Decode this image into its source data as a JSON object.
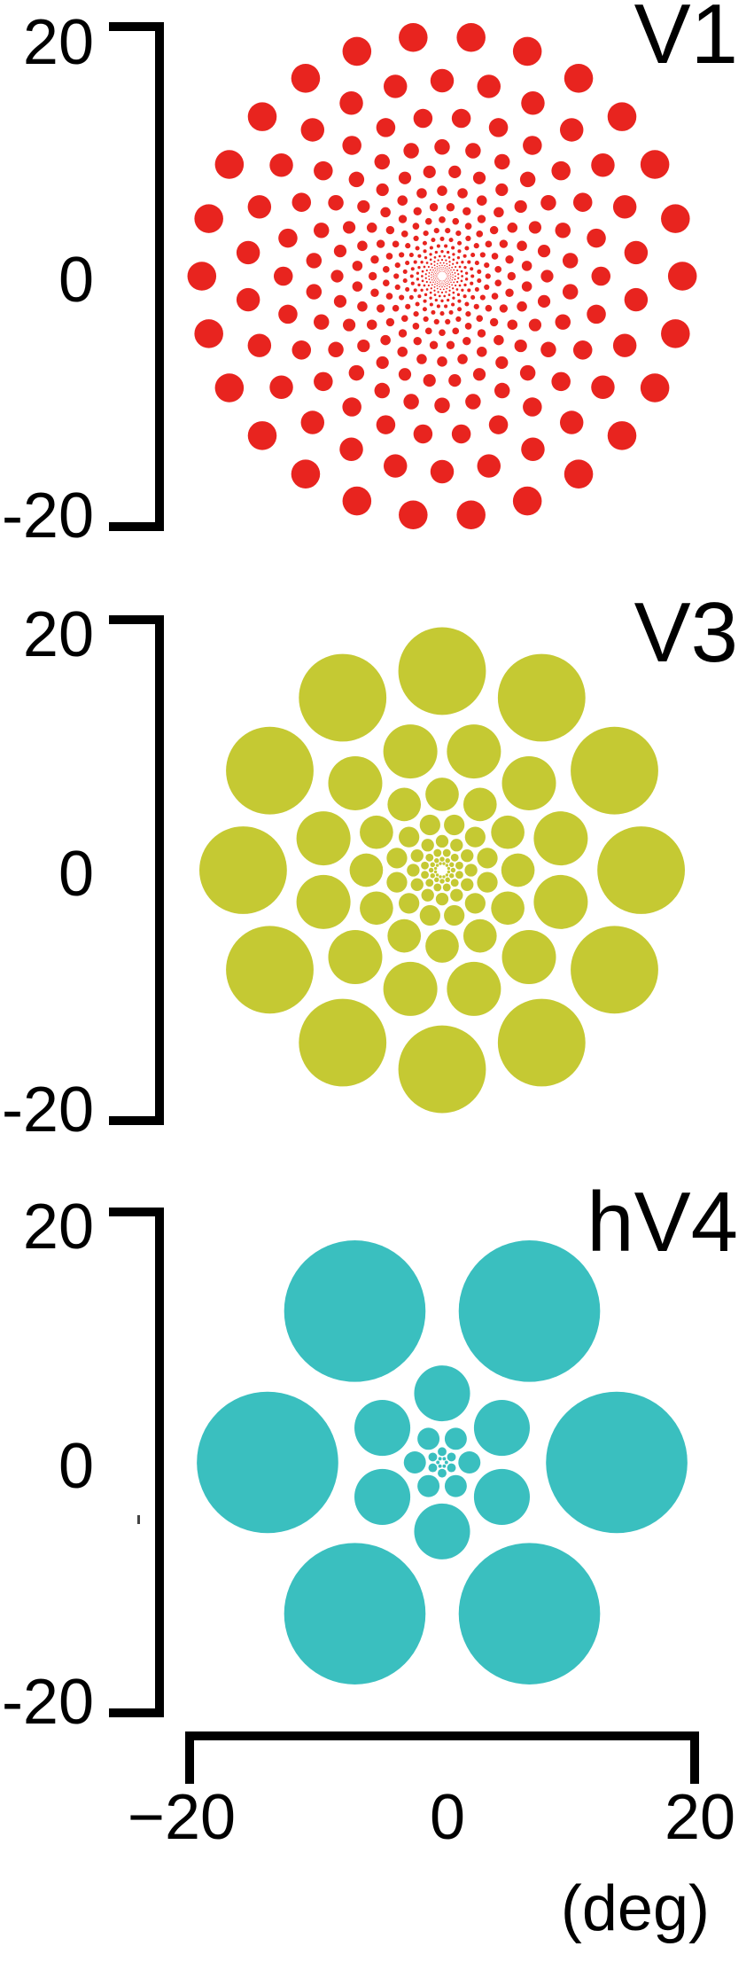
{
  "figure": {
    "background_color": "#ffffff",
    "axis_color": "#000000",
    "description": "Population receptive field (pRF) size versus eccentricity in three human visual field maps. Each panel plots circles (pRFs) tiling the visual field; circle size grows with eccentricity, and the growth rate increases from V1 to V3 to hV4."
  },
  "y_axis": {
    "labels": [
      "20",
      "0",
      "-20"
    ],
    "tick_values": [
      20,
      -20
    ],
    "range_deg": [
      -20,
      20
    ]
  },
  "x_axis": {
    "labels": [
      "−20",
      "0",
      "20"
    ],
    "tick_values": [
      -20,
      20
    ],
    "range_deg": [
      -20,
      20
    ],
    "unit_label": "(deg)"
  },
  "chart_data": [
    {
      "type": "scatter",
      "title": "V1",
      "area": "V1",
      "color": "#e8241f",
      "x_range_deg": [
        -20,
        20
      ],
      "y_range_deg": [
        -20,
        20
      ],
      "rings": {
        "outer_eccentricity_deg": 19.2,
        "eccentricity_ratio_between_rings": 1.23,
        "circles_per_ring": 26,
        "num_rings": 20,
        "prf_radius_over_eccentricity": 0.06,
        "outer_ring_has_circle_at_top": false
      }
    },
    {
      "type": "scatter",
      "title": "V3",
      "area": "V3",
      "color": "#c5c933",
      "x_range_deg": [
        -20,
        20
      ],
      "y_range_deg": [
        -20,
        20
      ],
      "rings": {
        "outer_eccentricity_deg": 15.9,
        "eccentricity_ratio_between_rings": 1.62,
        "circles_per_ring": 12,
        "num_rings": 8,
        "prf_radius_over_eccentricity": 0.22,
        "outer_ring_has_circle_at_top": true
      }
    },
    {
      "type": "scatter",
      "title": "hV4",
      "area": "hV4",
      "color": "#3abfbf",
      "x_range_deg": [
        -20,
        20
      ],
      "y_range_deg": [
        -20,
        20
      ],
      "rings": {
        "outer_eccentricity_deg": 13.95,
        "eccentricity_ratio_between_rings": 2.53,
        "circles_per_ring": 6,
        "num_rings": 5,
        "prf_radius_over_eccentricity": 0.405,
        "outer_ring_has_circle_at_top": false
      }
    }
  ]
}
